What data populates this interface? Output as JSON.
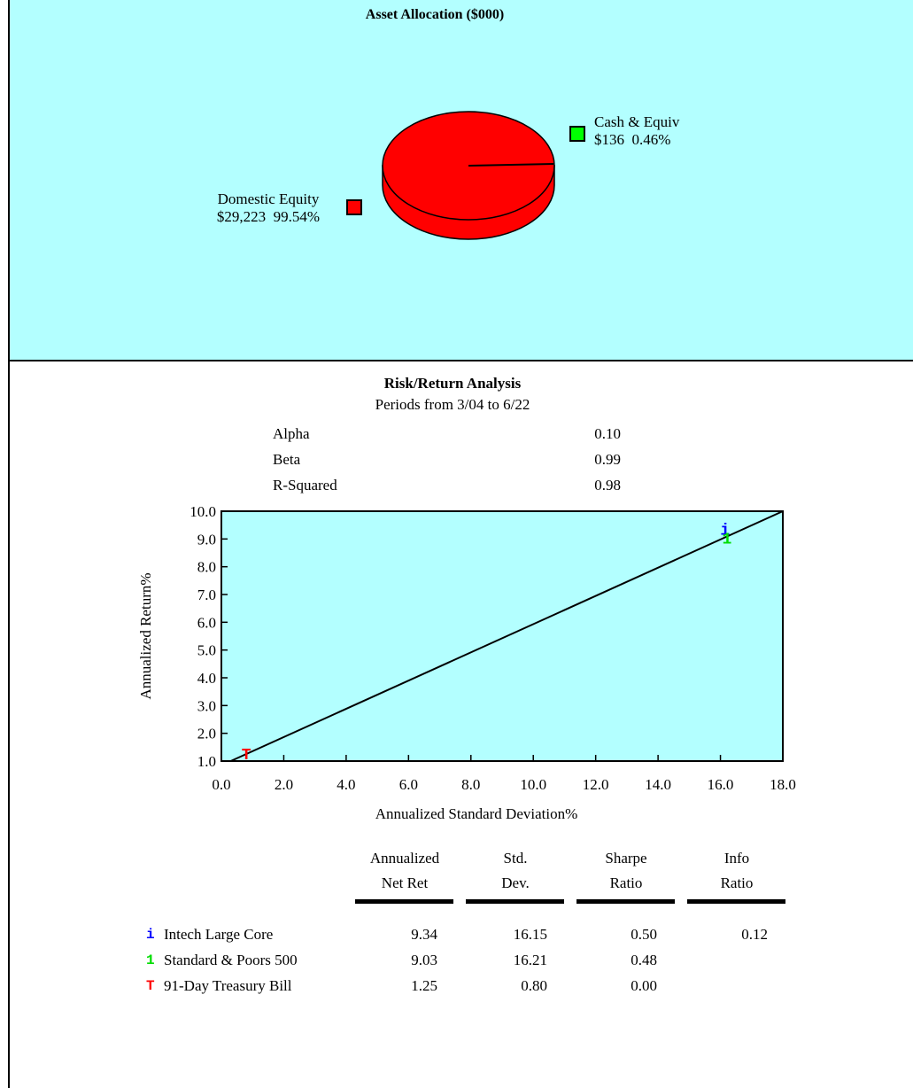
{
  "allocation": {
    "title": "Asset Allocation ($000)",
    "slices": [
      {
        "name": "Cash & Equiv",
        "amount": "$136",
        "percent_label": "0.46%",
        "percent": 0.46,
        "color": "#00ff00"
      },
      {
        "name": "Domestic Equity",
        "amount": "$29,223",
        "percent_label": "99.54%",
        "percent": 99.54,
        "color": "#ff0000"
      }
    ]
  },
  "risk": {
    "title": "Risk/Return Analysis",
    "subtitle": "Periods from 3/04 to 6/22",
    "stats": [
      {
        "label": "Alpha",
        "value": "0.10"
      },
      {
        "label": "Beta",
        "value": "0.99"
      },
      {
        "label": "R-Squared",
        "value": "0.98"
      }
    ],
    "table": {
      "headers": [
        {
          "line1": "Annualized",
          "line2": "Net Ret"
        },
        {
          "line1": "Std.",
          "line2": "Dev."
        },
        {
          "line1": "Sharpe",
          "line2": "Ratio"
        },
        {
          "line1": "Info",
          "line2": "Ratio"
        }
      ],
      "rows": [
        {
          "marker": "i",
          "marker_color": "#0000ff",
          "name": "Intech Large Core",
          "net_ret": "9.34",
          "std_dev": "16.15",
          "sharpe": "0.50",
          "info": "0.12"
        },
        {
          "marker": "1",
          "marker_color": "#00dd00",
          "name": "Standard & Poors 500",
          "net_ret": "9.03",
          "std_dev": "16.21",
          "sharpe": "0.48",
          "info": ""
        },
        {
          "marker": "T",
          "marker_color": "#ff0000",
          "name": "91-Day Treasury Bill",
          "net_ret": "1.25",
          "std_dev": "0.80",
          "sharpe": "0.00",
          "info": ""
        }
      ]
    }
  },
  "chart_data": [
    {
      "type": "pie",
      "title": "Asset Allocation ($000)",
      "categories": [
        "Cash & Equiv",
        "Domestic Equity"
      ],
      "values": [
        136,
        29223
      ],
      "percents": [
        0.46,
        99.54
      ],
      "colors": [
        "#00ff00",
        "#ff0000"
      ]
    },
    {
      "type": "scatter",
      "title": "Risk/Return Analysis",
      "xlabel": "Annualized Standard Deviation%",
      "ylabel": "Annualized Return%",
      "xlim": [
        0,
        18
      ],
      "ylim": [
        1,
        10
      ],
      "xticks": [
        "0.0",
        "2.0",
        "4.0",
        "6.0",
        "8.0",
        "10.0",
        "12.0",
        "14.0",
        "16.0",
        "18.0"
      ],
      "yticks": [
        "1.0",
        "2.0",
        "3.0",
        "4.0",
        "5.0",
        "6.0",
        "7.0",
        "8.0",
        "9.0",
        "10.0"
      ],
      "points": [
        {
          "marker": "i",
          "x": 16.15,
          "y": 9.34,
          "color": "#0000ff"
        },
        {
          "marker": "1",
          "x": 16.21,
          "y": 9.03,
          "color": "#00dd00"
        },
        {
          "marker": "T",
          "x": 0.8,
          "y": 1.25,
          "color": "#ff0000"
        }
      ],
      "market_line": {
        "x": [
          0.3,
          18.0
        ],
        "y": [
          1.0,
          10.0
        ]
      },
      "background": "#b3ffff"
    }
  ]
}
